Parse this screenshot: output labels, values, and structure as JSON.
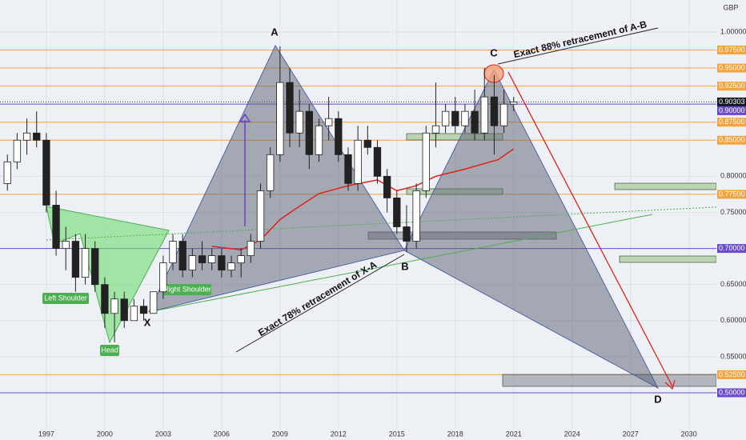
{
  "chart_data": {
    "type": "candlestick",
    "currency": "GBP",
    "xlim": [
      1994.62,
      2031.41
    ],
    "ylim": [
      0.4512,
      1.0443
    ],
    "xticks": [
      1997,
      2000,
      2003,
      2006,
      2009,
      2012,
      2015,
      2018,
      2021,
      2024,
      2027,
      2030
    ],
    "yticks": [
      {
        "value": 1.0,
        "label": "1.00000"
      },
      {
        "value": 0.8,
        "label": "0.80000"
      },
      {
        "value": 0.75,
        "label": "0.75000"
      },
      {
        "value": 0.65,
        "label": "0.65000"
      },
      {
        "value": 0.6,
        "label": "0.60000"
      },
      {
        "value": 0.55,
        "label": "0.55000"
      }
    ],
    "grid": true,
    "levels": [
      {
        "value": 0.975,
        "label": "0.97500",
        "color": "#f7a23b"
      },
      {
        "value": 0.95,
        "label": "0.95000",
        "color": "#f7a23b"
      },
      {
        "value": 0.925,
        "label": "0.92500",
        "color": "#f7a23b"
      },
      {
        "value": 0.9,
        "label": "0.90000",
        "color": "#6a4bd1"
      },
      {
        "value": 0.875,
        "label": "0.87500",
        "color": "#f7a23b"
      },
      {
        "value": 0.85,
        "label": "0.85000",
        "color": "#f7a23b"
      },
      {
        "value": 0.775,
        "label": "0.77500",
        "color": "#f7a23b"
      },
      {
        "value": 0.7,
        "label": "0.70000",
        "color": "#6a4bd1"
      },
      {
        "value": 0.525,
        "label": "0.52500",
        "color": "#f7a23b"
      },
      {
        "value": 0.5,
        "label": "0.50000",
        "color": "#6a4bd1"
      }
    ],
    "last_price": {
      "value": 0.90303,
      "label": "0.90303"
    },
    "x": [
      1995.0,
      1995.5,
      1996.0,
      1996.5,
      1997.0,
      1997.5,
      1998.0,
      1998.5,
      1999.0,
      1999.5,
      2000.0,
      2000.5,
      2001.0,
      2001.5,
      2002.0,
      2002.5,
      2003.0,
      2003.5,
      2004.0,
      2004.5,
      2005.0,
      2005.5,
      2006.0,
      2006.5,
      2007.0,
      2007.5,
      2008.0,
      2008.5,
      2009.0,
      2009.5,
      2010.0,
      2010.5,
      2011.0,
      2011.5,
      2012.0,
      2012.5,
      2013.0,
      2013.5,
      2014.0,
      2014.5,
      2015.0,
      2015.5,
      2016.0,
      2016.5,
      2017.0,
      2017.5,
      2018.0,
      2018.5,
      2019.0,
      2019.5,
      2020.0,
      2020.5,
      2021.0
    ],
    "open": [
      0.79,
      0.82,
      0.85,
      0.86,
      0.85,
      0.76,
      0.7,
      0.71,
      0.66,
      0.7,
      0.65,
      0.61,
      0.63,
      0.6,
      0.62,
      0.61,
      0.64,
      0.68,
      0.71,
      0.67,
      0.69,
      0.68,
      0.69,
      0.67,
      0.68,
      0.69,
      0.71,
      0.78,
      0.83,
      0.93,
      0.86,
      0.89,
      0.83,
      0.87,
      0.88,
      0.83,
      0.79,
      0.85,
      0.84,
      0.8,
      0.77,
      0.73,
      0.71,
      0.78,
      0.86,
      0.87,
      0.89,
      0.87,
      0.89,
      0.86,
      0.91,
      0.87,
      0.9
    ],
    "high": [
      0.83,
      0.86,
      0.88,
      0.89,
      0.86,
      0.78,
      0.73,
      0.72,
      0.72,
      0.71,
      0.66,
      0.64,
      0.64,
      0.63,
      0.63,
      0.64,
      0.69,
      0.72,
      0.72,
      0.7,
      0.71,
      0.7,
      0.7,
      0.69,
      0.7,
      0.72,
      0.79,
      0.84,
      0.98,
      0.95,
      0.92,
      0.9,
      0.88,
      0.91,
      0.89,
      0.84,
      0.87,
      0.87,
      0.85,
      0.81,
      0.78,
      0.76,
      0.79,
      0.87,
      0.93,
      0.9,
      0.91,
      0.9,
      0.92,
      0.95,
      0.94,
      0.92,
      0.91
    ],
    "low": [
      0.78,
      0.81,
      0.83,
      0.84,
      0.75,
      0.69,
      0.67,
      0.64,
      0.65,
      0.64,
      0.59,
      0.57,
      0.59,
      0.6,
      0.6,
      0.61,
      0.63,
      0.67,
      0.66,
      0.66,
      0.67,
      0.67,
      0.66,
      0.66,
      0.66,
      0.68,
      0.7,
      0.77,
      0.82,
      0.84,
      0.84,
      0.81,
      0.82,
      0.85,
      0.82,
      0.78,
      0.78,
      0.83,
      0.79,
      0.75,
      0.72,
      0.695,
      0.7,
      0.77,
      0.84,
      0.86,
      0.86,
      0.86,
      0.85,
      0.85,
      0.83,
      0.86,
      0.89
    ],
    "close": [
      0.82,
      0.85,
      0.86,
      0.85,
      0.76,
      0.7,
      0.71,
      0.66,
      0.7,
      0.65,
      0.61,
      0.63,
      0.6,
      0.62,
      0.61,
      0.64,
      0.68,
      0.71,
      0.67,
      0.69,
      0.68,
      0.69,
      0.67,
      0.68,
      0.69,
      0.71,
      0.78,
      0.83,
      0.93,
      0.86,
      0.89,
      0.83,
      0.87,
      0.88,
      0.83,
      0.79,
      0.85,
      0.84,
      0.8,
      0.77,
      0.73,
      0.71,
      0.78,
      0.86,
      0.87,
      0.89,
      0.87,
      0.89,
      0.86,
      0.91,
      0.87,
      0.9,
      0.903
    ],
    "moving_average": {
      "color": "#e0221b",
      "x": [
        2005.5,
        2007,
        2008,
        2009,
        2009.8,
        2011,
        2012.5,
        2014,
        2015,
        2016,
        2017,
        2018.5,
        2020.2,
        2021
      ],
      "values": [
        0.703,
        0.698,
        0.712,
        0.74,
        0.755,
        0.776,
        0.787,
        0.795,
        0.78,
        0.787,
        0.8,
        0.81,
        0.823,
        0.838
      ]
    },
    "points": [
      "X",
      "A",
      "B",
      "C",
      "D"
    ],
    "pattern_labels": [
      "Left Shoulder",
      "Head",
      "Right Shoulder"
    ],
    "notes": [
      "Exact 88% retracement of A-B",
      "Exact 78% retracement of X-A"
    ]
  }
}
